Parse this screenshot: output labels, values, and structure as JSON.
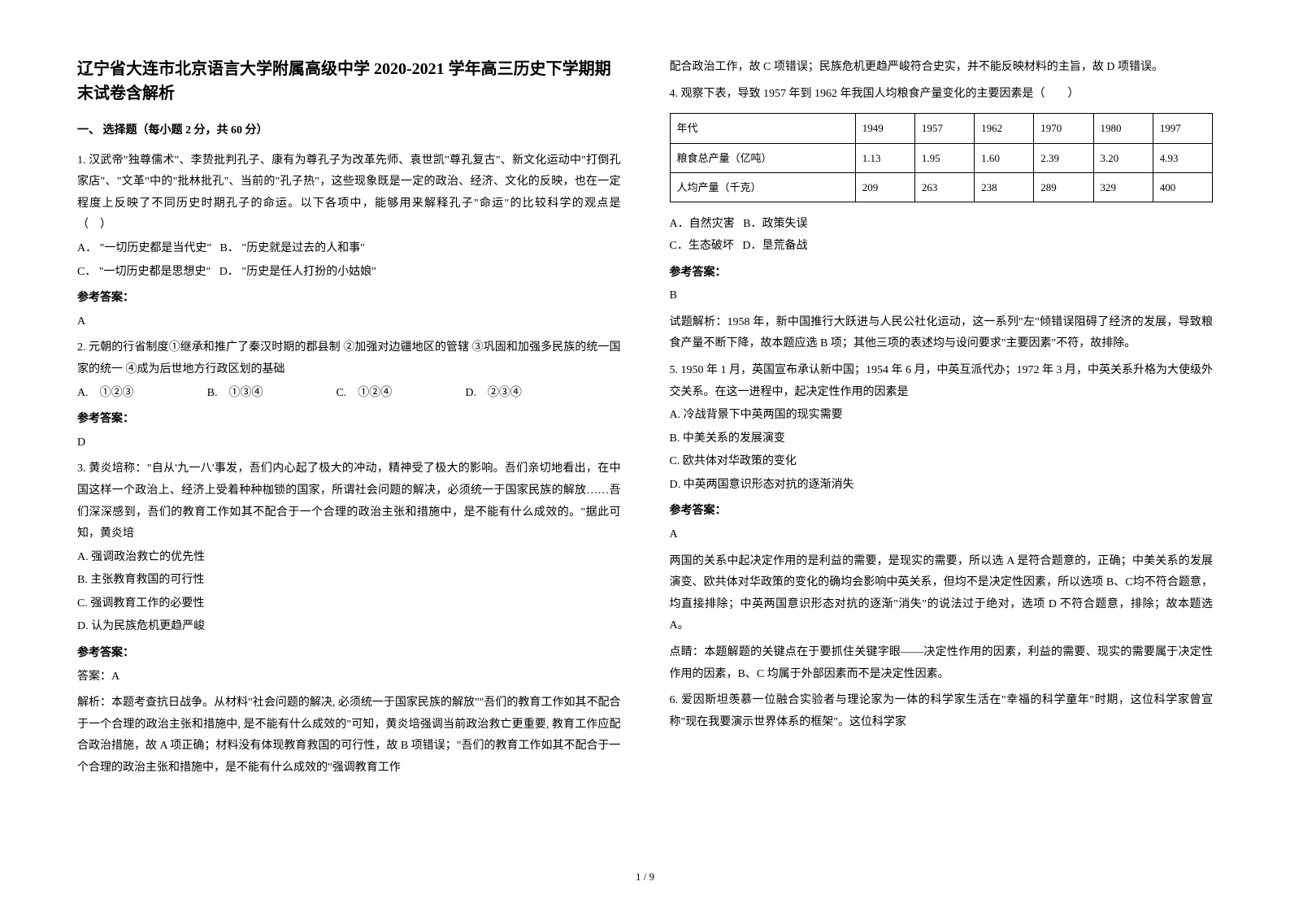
{
  "title": "辽宁省大连市北京语言大学附属高级中学 2020-2021 学年高三历史下学期期末试卷含解析",
  "section1_header": "一、 选择题（每小题 2 分，共 60 分）",
  "q1": {
    "text": "1. 汉武帝\"独尊儒术\"、李贽批判孔子、康有为尊孔子为改革先师、袁世凯\"尊孔复古\"、新文化运动中\"打倒孔家店\"、\"文革\"中的\"批林批孔\"、当前的\"孔子热\"，这些现象既是一定的政治、经济、文化的反映，也在一定程度上反映了不同历史时期孔子的命运。以下各项中，能够用来解释孔子\"命运\"的比较科学的观点是　　　　　　（　）",
    "optA": "A． \"一切历史都是当代史\"",
    "optB": "B． \"历史就是过去的人和事\"",
    "optC": "C． \"一切历史都是思想史\"",
    "optD": "D． \"历史是任人打扮的小姑娘\"",
    "answer_label": "参考答案：",
    "answer": "A"
  },
  "q2": {
    "text": "2. 元朝的行省制度①继承和推广了秦汉时期的郡县制  ②加强对边疆地区的管辖  ③巩固和加强多民族的统一国家的统一  ④成为后世地方行政区划的基础",
    "optA": "A.　①②③",
    "optB": "B.　①③④",
    "optC": "C.　①②④",
    "optD": "D.　②③④",
    "answer_label": "参考答案：",
    "answer": "D"
  },
  "q3": {
    "text": "3. 黄炎培称：\"自从'九一八'事发，吾们内心起了极大的冲动，精神受了极大的影响。吾们亲切地看出，在中国这样一个政治上、经济上受着种种枷锁的国家，所谓社会问题的解决，必须统一于国家民族的解放……吾们深深感到，吾们的教育工作如其不配合于一个合理的政治主张和措施中，是不能有什么成效的。\"据此可知，黄炎培",
    "optA": "A. 强调政治救亡的优先性",
    "optB": "B. 主张教育救国的可行性",
    "optC": "C. 强调教育工作的必要性",
    "optD": "D. 认为民族危机更趋严峻",
    "answer_label": "参考答案：",
    "answer": "答案：A",
    "explanation": "解析：本题考查抗日战争。从材料\"社会问题的解决, 必须统一于国家民族的解放\"\"吾们的教育工作如其不配合于一个合理的政治主张和措施中, 是不能有什么成效的\"可知，黄炎培强调当前政治救亡更重要, 教育工作应配合政治措施，故 A 项正确；材料没有体现教育救国的可行性，故 B 项错误；\"吾们的教育工作如其不配合于一个合理的政治主张和措施中，是不能有什么成效的\"强调教育工作"
  },
  "col2_top": "配合政治工作，故 C 项错误；民族危机更趋严峻符合史实，并不能反映材料的主旨，故 D 项错误。",
  "q4": {
    "text": "4. 观察下表，导致 1957 年到 1962 年我国人均粮食产量变化的主要因素是（　　）",
    "table": {
      "columns": [
        "年代",
        "1949",
        "1957",
        "1962",
        "1970",
        "1980",
        "1997"
      ],
      "rows": [
        [
          "粮食总产量（亿吨）",
          "1.13",
          "1.95",
          "1.60",
          "2.39",
          "3.20",
          "4.93"
        ],
        [
          "人均产量（千克）",
          "209",
          "263",
          "238",
          "289",
          "329",
          "400"
        ]
      ],
      "border_color": "#000000",
      "cell_padding": "6px 8px"
    },
    "optA": "A．自然灾害",
    "optB": "B．政策失误",
    "optC": "C．生态破坏",
    "optD": "D．垦荒备战",
    "answer_label": "参考答案：",
    "answer": "B",
    "explanation": "试题解析：1958 年，新中国推行大跃进与人民公社化运动，这一系列\"左\"倾错误阻碍了经济的发展，导致粮食产量不断下降，故本题应选 B 项；其他三项的表述均与设问要求\"主要因素\"不符，故排除。"
  },
  "q5": {
    "text": "5. 1950 年 1 月，英国宣布承认新中国；1954 年 6 月，中英互派代办；1972 年 3 月，中英关系升格为大使级外交关系。在这一进程中，起决定性作用的因素是",
    "optA": "A. 冷战背景下中英两国的现实需要",
    "optB": "B. 中美关系的发展演变",
    "optC": "C. 欧共体对华政策的变化",
    "optD": "D. 中英两国意识形态对抗的逐渐消失",
    "answer_label": "参考答案：",
    "answer": "A",
    "explanation1": "两国的关系中起决定作用的是利益的需要，是现实的需要，所以选 A 是符合题意的，正确；中美关系的发展演变、欧共体对华政策的变化的确均会影响中英关系，但均不是决定性因素，所以选项 B、C均不符合题意，均直接排除；中英两国意识形态对抗的逐渐\"消失\"的说法过于绝对，选项 D 不符合题意，排除；故本题选 A。",
    "explanation2": "点睛：本题解题的关键点在于要抓住关键字眼——决定性作用的因素，利益的需要、现实的需要属于决定性作用的因素，B、C 均属于外部因素而不是决定性因素。"
  },
  "q6": {
    "text": "6. 爱因斯坦羡慕一位融合实验者与理论家为一体的科学家生活在\"幸福的科学童年\"时期，这位科学家曾宣称\"现在我要演示世界体系的框架\"。这位科学家"
  },
  "page_number": "1 / 9"
}
